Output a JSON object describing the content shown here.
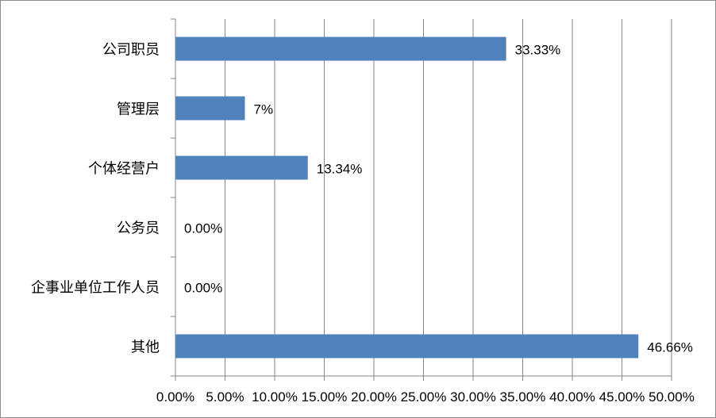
{
  "chart_data": {
    "type": "bar",
    "orientation": "horizontal",
    "title": "",
    "xlabel": "",
    "ylabel": "",
    "categories": [
      "公司职员",
      "管理层",
      "个体经营户",
      "公务员",
      "企事业单位工作人员",
      "其他"
    ],
    "values": [
      33.33,
      7.0,
      13.34,
      0.0,
      0.0,
      46.66
    ],
    "data_labels": [
      "33.33%",
      "7%",
      "13.34%",
      "0.00%",
      "0.00%",
      "46.66%"
    ],
    "xlim": [
      0,
      50
    ],
    "x_ticks": [
      0,
      5,
      10,
      15,
      20,
      25,
      30,
      35,
      40,
      45,
      50
    ],
    "x_tick_labels": [
      "0.00%",
      "5.00%",
      "10.00%",
      "15.00%",
      "20.00%",
      "25.00%",
      "30.00%",
      "35.00%",
      "40.00%",
      "45.00%",
      "50.00%"
    ],
    "grid": "vertical",
    "legend": "none",
    "bar_color": "#4f81bd",
    "grid_color": "#868686"
  }
}
